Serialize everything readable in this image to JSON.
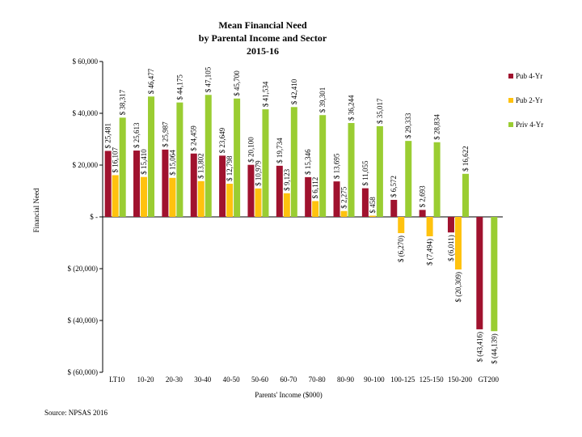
{
  "chart_data": {
    "type": "bar",
    "title": [
      "Mean Financial Need",
      "by Parental Income and Sector",
      "2015-16"
    ],
    "xlabel": "Parents' Income ($000)",
    "ylabel": "Financial Need",
    "source": "Source: NPSAS 2016",
    "ylim": [
      -60000,
      60000
    ],
    "yticks": [
      {
        "value": 60000,
        "label": "$ 60,000"
      },
      {
        "value": 40000,
        "label": "$ 40,000"
      },
      {
        "value": 20000,
        "label": "$ 20,000"
      },
      {
        "value": 0,
        "label": "$ -"
      },
      {
        "value": -20000,
        "label": "$ (20,000)"
      },
      {
        "value": -40000,
        "label": "$ (40,000)"
      },
      {
        "value": -60000,
        "label": "$ (60,000)"
      }
    ],
    "categories": [
      "LT10",
      "10-20",
      "20-30",
      "30-40",
      "40-50",
      "50-60",
      "60-70",
      "70-80",
      "80-90",
      "90-100",
      "100-125",
      "125-150",
      "150-200",
      "GT200"
    ],
    "legend_position": "right",
    "series": [
      {
        "name": "Pub 4-Yr",
        "color": "#a0122e",
        "values": [
          25481,
          25613,
          25987,
          24459,
          23649,
          20100,
          19734,
          15346,
          13695,
          11055,
          6572,
          2693,
          -6011,
          -43416
        ],
        "labels": [
          "$ 25,481",
          "$ 25,613",
          "$ 25,987",
          "$ 24,459",
          "$ 23,649",
          "$ 20,100",
          "$ 19,734",
          "$ 15,346",
          "$ 13,695",
          "$ 11,055",
          "$ 6,572",
          "$ 2,693",
          "$ (6,011)",
          "$ (43,416)"
        ]
      },
      {
        "name": "Pub 2-Yr",
        "color": "#ffc20e",
        "values": [
          16107,
          15410,
          15064,
          13802,
          12798,
          10979,
          9123,
          6112,
          2275,
          458,
          -6270,
          -7494,
          -20309,
          null
        ],
        "labels": [
          "$ 16,107",
          "$ 15,410",
          "$ 15,064",
          "$ 13,802",
          "$ 12,798",
          "$ 10,979",
          "$ 9,123",
          "$ 6,112",
          "$ 2,275",
          "$ 458",
          "$ (6,270)",
          "$ (7,494)",
          "$ (20,309)",
          ""
        ]
      },
      {
        "name": "Priv 4-Yr",
        "color": "#9acd32",
        "values": [
          38317,
          46477,
          44175,
          47105,
          45700,
          41534,
          42410,
          39301,
          36244,
          35017,
          29333,
          28834,
          16622,
          -44139
        ],
        "labels": [
          "$ 38,317",
          "$ 46,477",
          "$ 44,175",
          "$ 47,105",
          "$ 45,700",
          "$ 41,534",
          "$ 42,410",
          "$ 39,301",
          "$ 36,244",
          "$ 35,017",
          "$ 29,333",
          "$ 28,834",
          "$ 16,622",
          "$ (44,139)"
        ]
      }
    ]
  }
}
